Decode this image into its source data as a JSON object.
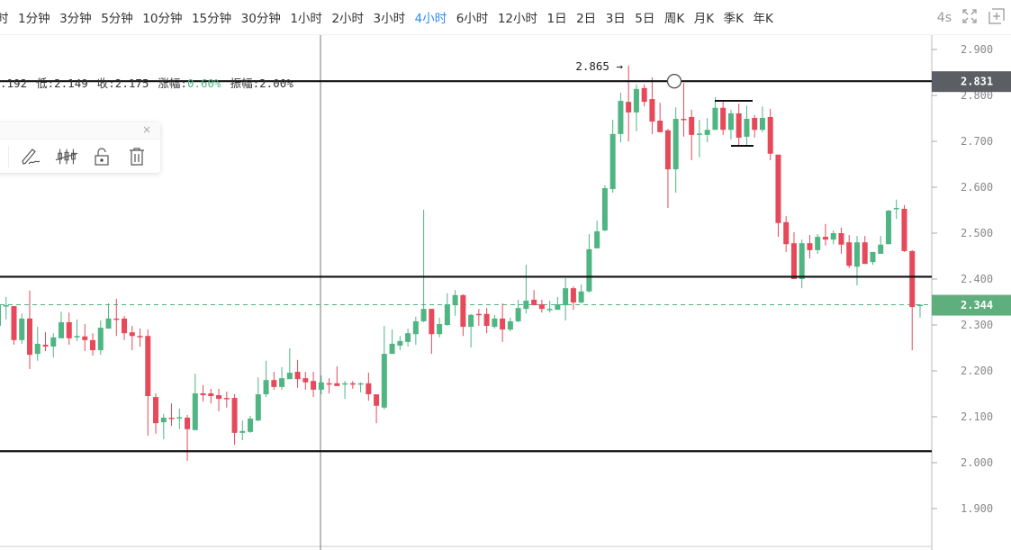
{
  "toolbar": {
    "intervals": [
      "时",
      "1分钟",
      "3分钟",
      "5分钟",
      "10分钟",
      "15分钟",
      "30分钟",
      "1小时",
      "2小时",
      "3小时",
      "4小时",
      "6小时",
      "12小时",
      "1日",
      "2日",
      "3日",
      "5日",
      "周K",
      "月K",
      "季K",
      "年K"
    ],
    "active_interval": "4小时",
    "refresh_label": "4s",
    "icons": [
      "fullscreen-icon",
      "screenshot-icon"
    ]
  },
  "ohlc": {
    "high_partial": ".192",
    "low": "低:2.149",
    "close": "收:2.175",
    "change_label": "涨幅:",
    "change_value": "0.60%",
    "amplitude": "振幅:2.00%"
  },
  "drawing_toolbar": {
    "close_label": "×",
    "tools": [
      "pen-icon",
      "hide-drawings-icon",
      "unlock-icon",
      "trash-icon"
    ]
  },
  "colors": {
    "up": "#4fb583",
    "down": "#e5495a",
    "accent": "#2d8cf0",
    "last_price_bg": "#5fae7d",
    "crosshair_label_bg": "#5b5e63"
  },
  "chart_data": {
    "type": "candlestick",
    "ylim": [
      1.85,
      2.95
    ],
    "y_ticks": [
      "2.900",
      "2.800",
      "2.700",
      "2.600",
      "2.500",
      "2.400",
      "2.300",
      "2.200",
      "2.100",
      "2.000",
      "1.900"
    ],
    "last_price": "2.344",
    "crosshair_price": "2.831",
    "max_marker": "2.865 →",
    "horizontal_lines": [
      2.831,
      2.405,
      2.025
    ],
    "candles_ohlc": [
      [
        2.298,
        2.351,
        2.298,
        2.343
      ],
      [
        2.343,
        2.361,
        2.312,
        2.343
      ],
      [
        2.341,
        2.341,
        2.257,
        2.267
      ],
      [
        2.267,
        2.325,
        2.259,
        2.314
      ],
      [
        2.314,
        2.375,
        2.204,
        2.235
      ],
      [
        2.237,
        2.296,
        2.222,
        2.259
      ],
      [
        2.257,
        2.284,
        2.243,
        2.253
      ],
      [
        2.253,
        2.282,
        2.229,
        2.273
      ],
      [
        2.271,
        2.329,
        2.271,
        2.306
      ],
      [
        2.306,
        2.327,
        2.257,
        2.271
      ],
      [
        2.275,
        2.312,
        2.265,
        2.276
      ],
      [
        2.275,
        2.302,
        2.243,
        2.267
      ],
      [
        2.267,
        2.282,
        2.233,
        2.245
      ],
      [
        2.245,
        2.31,
        2.235,
        2.294
      ],
      [
        2.292,
        2.347,
        2.292,
        2.314
      ],
      [
        2.314,
        2.357,
        2.276,
        2.312
      ],
      [
        2.314,
        2.32,
        2.267,
        2.282
      ],
      [
        2.284,
        2.298,
        2.245,
        2.276
      ],
      [
        2.276,
        2.292,
        2.253,
        2.275
      ],
      [
        2.276,
        2.29,
        2.059,
        2.145
      ],
      [
        2.143,
        2.151,
        2.063,
        2.086
      ],
      [
        2.088,
        2.106,
        2.051,
        2.098
      ],
      [
        2.098,
        2.129,
        2.08,
        2.096
      ],
      [
        2.098,
        2.118,
        2.073,
        2.099
      ],
      [
        2.098,
        2.104,
        2.004,
        2.073
      ],
      [
        2.071,
        2.194,
        2.071,
        2.151
      ],
      [
        2.151,
        2.169,
        2.133,
        2.147
      ],
      [
        2.151,
        2.161,
        2.129,
        2.145
      ],
      [
        2.147,
        2.161,
        2.112,
        2.139
      ],
      [
        2.141,
        2.155,
        2.12,
        2.14
      ],
      [
        2.141,
        2.149,
        2.039,
        2.065
      ],
      [
        2.065,
        2.092,
        2.049,
        2.069
      ],
      [
        2.067,
        2.102,
        2.065,
        2.096
      ],
      [
        2.092,
        2.186,
        2.09,
        2.149
      ],
      [
        2.149,
        2.222,
        2.143,
        2.18
      ],
      [
        2.18,
        2.198,
        2.159,
        2.165
      ],
      [
        2.165,
        2.208,
        2.159,
        2.184
      ],
      [
        2.182,
        2.249,
        2.182,
        2.196
      ],
      [
        2.198,
        2.224,
        2.163,
        2.182
      ],
      [
        2.184,
        2.198,
        2.159,
        2.175
      ],
      [
        2.178,
        2.198,
        2.143,
        2.159
      ],
      [
        2.159,
        2.19,
        2.149,
        2.175
      ],
      [
        2.173,
        2.184,
        2.151,
        2.171
      ],
      [
        2.173,
        2.21,
        2.167,
        2.167
      ],
      [
        2.171,
        2.178,
        2.139,
        2.173
      ],
      [
        2.173,
        2.178,
        2.161,
        2.171
      ],
      [
        2.171,
        2.175,
        2.153,
        2.173
      ],
      [
        2.173,
        2.196,
        2.135,
        2.149
      ],
      [
        2.149,
        2.149,
        2.086,
        2.124
      ],
      [
        2.12,
        2.298,
        2.116,
        2.237
      ],
      [
        2.237,
        2.29,
        2.237,
        2.259
      ],
      [
        2.255,
        2.276,
        2.245,
        2.265
      ],
      [
        2.263,
        2.292,
        2.253,
        2.282
      ],
      [
        2.28,
        2.318,
        2.257,
        2.308
      ],
      [
        2.308,
        2.551,
        2.306,
        2.335
      ],
      [
        2.335,
        2.335,
        2.237,
        2.28
      ],
      [
        2.28,
        2.316,
        2.273,
        2.302
      ],
      [
        2.3,
        2.369,
        2.298,
        2.345
      ],
      [
        2.343,
        2.376,
        2.32,
        2.365
      ],
      [
        2.365,
        2.367,
        2.276,
        2.296
      ],
      [
        2.296,
        2.324,
        2.251,
        2.322
      ],
      [
        2.324,
        2.335,
        2.298,
        2.322
      ],
      [
        2.324,
        2.337,
        2.282,
        2.298
      ],
      [
        2.296,
        2.322,
        2.292,
        2.314
      ],
      [
        2.314,
        2.347,
        2.263,
        2.29
      ],
      [
        2.29,
        2.316,
        2.286,
        2.308
      ],
      [
        2.308,
        2.355,
        2.306,
        2.337
      ],
      [
        2.335,
        2.431,
        2.325,
        2.353
      ],
      [
        2.355,
        2.376,
        2.343,
        2.343
      ],
      [
        2.345,
        2.355,
        2.327,
        2.335
      ],
      [
        2.333,
        2.353,
        2.327,
        2.335
      ],
      [
        2.333,
        2.361,
        2.333,
        2.345
      ],
      [
        2.343,
        2.402,
        2.31,
        2.38
      ],
      [
        2.38,
        2.384,
        2.333,
        2.349
      ],
      [
        2.349,
        2.388,
        2.347,
        2.373
      ],
      [
        2.373,
        2.498,
        2.371,
        2.465
      ],
      [
        2.467,
        2.527,
        2.467,
        2.504
      ],
      [
        2.506,
        2.604,
        2.504,
        2.598
      ],
      [
        2.596,
        2.747,
        2.588,
        2.716
      ],
      [
        2.716,
        2.806,
        2.698,
        2.788
      ],
      [
        2.786,
        2.865,
        2.7,
        2.763
      ],
      [
        2.763,
        2.824,
        2.722,
        2.814
      ],
      [
        2.816,
        2.824,
        2.776,
        2.786
      ],
      [
        2.792,
        2.839,
        2.716,
        2.743
      ],
      [
        2.745,
        2.784,
        2.72,
        2.72
      ],
      [
        2.724,
        2.727,
        2.555,
        2.639
      ],
      [
        2.639,
        2.774,
        2.588,
        2.749
      ],
      [
        2.749,
        2.827,
        2.71,
        2.747
      ],
      [
        2.753,
        2.769,
        2.659,
        2.714
      ],
      [
        2.716,
        2.747,
        2.665,
        2.717
      ],
      [
        2.714,
        2.751,
        2.698,
        2.725
      ],
      [
        2.725,
        2.796,
        2.725,
        2.773
      ],
      [
        2.773,
        2.786,
        2.714,
        2.725
      ],
      [
        2.725,
        2.769,
        2.704,
        2.761
      ],
      [
        2.761,
        2.782,
        2.69,
        2.708
      ],
      [
        2.71,
        2.778,
        2.69,
        2.749
      ],
      [
        2.751,
        2.757,
        2.708,
        2.725
      ],
      [
        2.725,
        2.776,
        2.72,
        2.751
      ],
      [
        2.753,
        2.771,
        2.659,
        2.673
      ],
      [
        2.671,
        2.671,
        2.492,
        2.522
      ],
      [
        2.524,
        2.537,
        2.459,
        2.476
      ],
      [
        2.478,
        2.502,
        2.4,
        2.4
      ],
      [
        2.4,
        2.486,
        2.38,
        2.478
      ],
      [
        2.478,
        2.496,
        2.445,
        2.463
      ],
      [
        2.463,
        2.498,
        2.455,
        2.492
      ],
      [
        2.492,
        2.52,
        2.473,
        2.486
      ],
      [
        2.486,
        2.506,
        2.476,
        2.5
      ],
      [
        2.5,
        2.512,
        2.455,
        2.475
      ],
      [
        2.48,
        2.496,
        2.424,
        2.429
      ],
      [
        2.427,
        2.494,
        2.386,
        2.48
      ],
      [
        2.48,
        2.494,
        2.433,
        2.433
      ],
      [
        2.437,
        2.459,
        2.431,
        2.459
      ],
      [
        2.455,
        2.494,
        2.455,
        2.475
      ],
      [
        2.476,
        2.551,
        2.476,
        2.549
      ],
      [
        2.553,
        2.573,
        2.531,
        2.555
      ],
      [
        2.553,
        2.561,
        2.459,
        2.461
      ],
      [
        2.461,
        2.463,
        2.245,
        2.339
      ],
      [
        2.343,
        2.345,
        2.316,
        2.344
      ]
    ]
  }
}
